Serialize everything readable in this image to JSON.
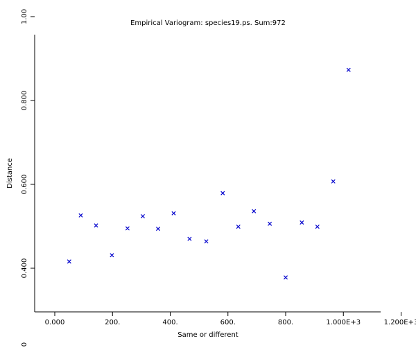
{
  "chart_data": {
    "type": "scatter",
    "title": "Empirical Variogram: species19.ps. Sum:972",
    "xlabel": "Same or different",
    "ylabel": "Distance",
    "xlim": [
      -70,
      1340
    ],
    "ylim": [
      0.3,
      1.0
    ],
    "x_ticks": [
      {
        "value": 0,
        "label": "0.000"
      },
      {
        "value": 200,
        "label": "200."
      },
      {
        "value": 400,
        "label": "400."
      },
      {
        "value": 600,
        "label": "600."
      },
      {
        "value": 800,
        "label": "800."
      },
      {
        "value": 1000,
        "label": "1.000E+3"
      },
      {
        "value": 1200,
        "label": "1.200E+3"
      }
    ],
    "y_ticks": [
      {
        "value": 0.4,
        "label": "0.400"
      },
      {
        "value": 0.6,
        "label": "0.600"
      },
      {
        "value": 0.8,
        "label": "0.800"
      },
      {
        "value": 1.0,
        "label": "1.00"
      }
    ],
    "corner_label": "0",
    "marker_color": "#0000cc",
    "grid": false,
    "points": [
      {
        "x": 50,
        "y": 0.416
      },
      {
        "x": 90,
        "y": 0.526
      },
      {
        "x": 143,
        "y": 0.502
      },
      {
        "x": 198,
        "y": 0.431
      },
      {
        "x": 252,
        "y": 0.495
      },
      {
        "x": 305,
        "y": 0.524
      },
      {
        "x": 358,
        "y": 0.494
      },
      {
        "x": 412,
        "y": 0.531
      },
      {
        "x": 467,
        "y": 0.47
      },
      {
        "x": 525,
        "y": 0.464
      },
      {
        "x": 582,
        "y": 0.579
      },
      {
        "x": 636,
        "y": 0.499
      },
      {
        "x": 690,
        "y": 0.536
      },
      {
        "x": 745,
        "y": 0.506
      },
      {
        "x": 800,
        "y": 0.378
      },
      {
        "x": 856,
        "y": 0.509
      },
      {
        "x": 910,
        "y": 0.499
      },
      {
        "x": 965,
        "y": 0.607
      },
      {
        "x": 1018,
        "y": 0.873
      }
    ]
  }
}
